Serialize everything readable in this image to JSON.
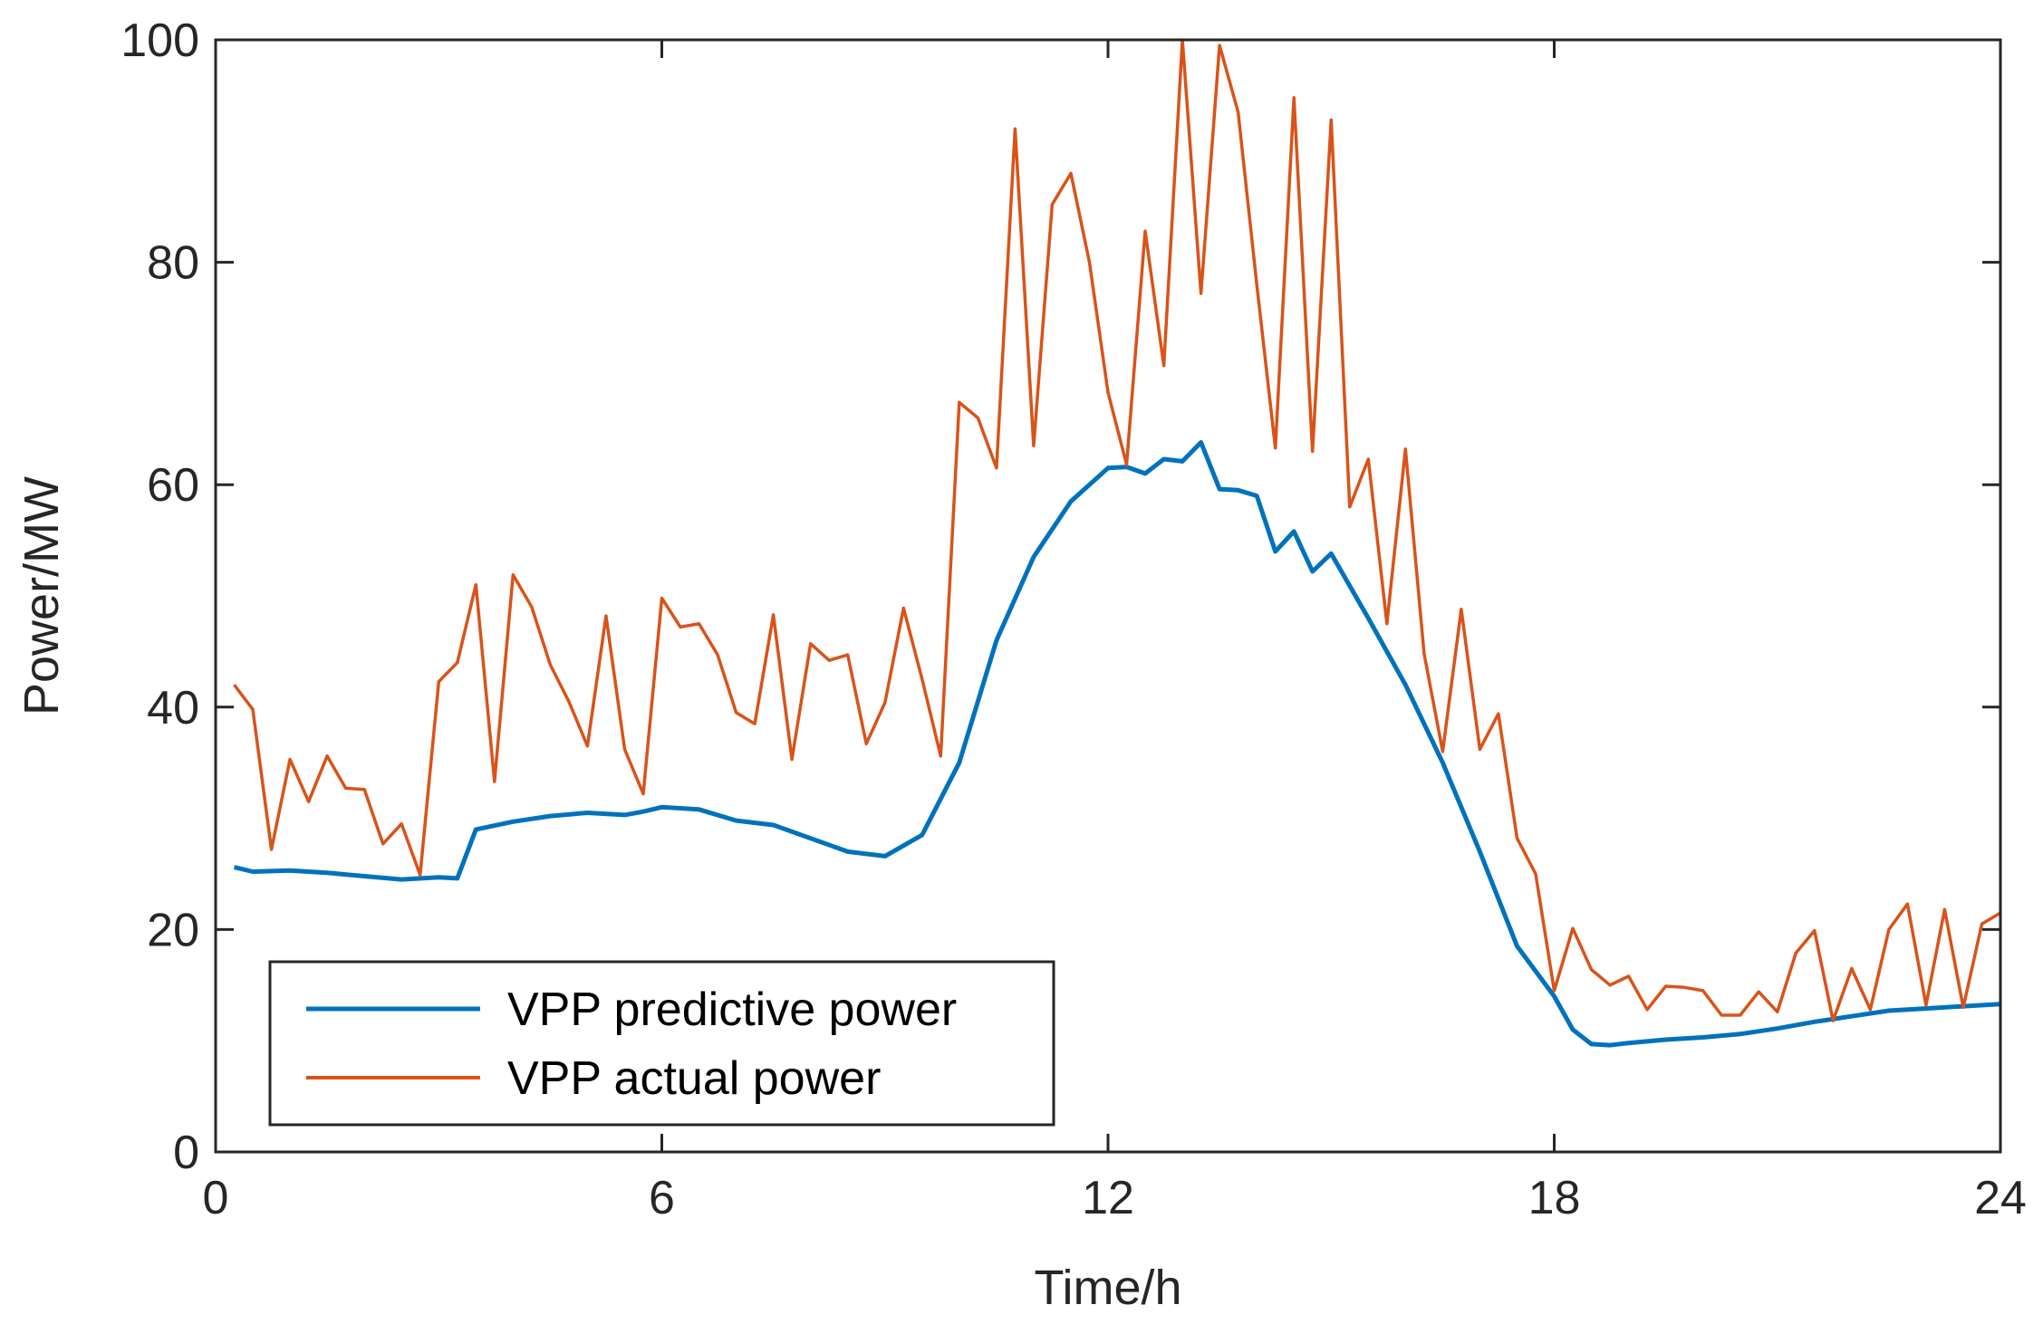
{
  "chart_data": {
    "type": "line",
    "title": "",
    "xlabel": "Time/h",
    "ylabel": "Power/MW",
    "xlim": [
      0,
      24
    ],
    "ylim": [
      0,
      100
    ],
    "xticks": [
      0,
      6,
      12,
      18,
      24
    ],
    "yticks": [
      0,
      20,
      40,
      60,
      80,
      100
    ],
    "grid": false,
    "legend_location": "bottom-left",
    "series": [
      {
        "name": "VPP predictive power",
        "color": "#0072BD",
        "x": [
          0.25,
          0.5,
          1.0,
          1.5,
          2.0,
          2.5,
          3.0,
          3.25,
          3.5,
          4.0,
          4.5,
          5.0,
          5.5,
          5.75,
          6.0,
          6.5,
          7.0,
          7.5,
          8.0,
          8.5,
          9.0,
          9.5,
          10.0,
          10.5,
          11.0,
          11.5,
          12.0,
          12.25,
          12.5,
          12.75,
          13.0,
          13.25,
          13.5,
          13.75,
          14.0,
          14.25,
          14.5,
          14.75,
          15.0,
          15.5,
          16.0,
          16.5,
          17.0,
          17.5,
          18.0,
          18.25,
          18.5,
          18.75,
          19.0,
          19.5,
          20.0,
          20.5,
          21.0,
          21.5,
          22.0,
          22.5,
          23.0,
          23.5,
          24.0
        ],
        "values": [
          25.6,
          25.2,
          25.3,
          25.1,
          24.8,
          24.5,
          24.7,
          24.6,
          29.0,
          29.7,
          30.2,
          30.5,
          30.3,
          30.6,
          31.0,
          30.8,
          29.8,
          29.4,
          28.2,
          27.0,
          26.6,
          28.5,
          35.0,
          46.0,
          53.5,
          58.5,
          61.5,
          61.6,
          61.0,
          62.3,
          62.1,
          63.8,
          59.6,
          59.5,
          59.0,
          54.0,
          55.8,
          52.2,
          53.8,
          48.0,
          42.0,
          35.0,
          27.0,
          18.5,
          14.0,
          11.0,
          9.7,
          9.6,
          9.8,
          10.1,
          10.3,
          10.6,
          11.1,
          11.7,
          12.2,
          12.7,
          12.9,
          13.1,
          13.3
        ]
      },
      {
        "name": "VPP actual power",
        "color": "#D95319",
        "x": [
          0.25,
          0.5,
          0.75,
          1.0,
          1.25,
          1.5,
          1.75,
          2.0,
          2.25,
          2.5,
          2.75,
          3.0,
          3.25,
          3.5,
          3.75,
          4.0,
          4.25,
          4.5,
          4.75,
          5.0,
          5.25,
          5.5,
          5.75,
          6.0,
          6.25,
          6.5,
          6.75,
          7.0,
          7.25,
          7.5,
          7.75,
          8.0,
          8.25,
          8.5,
          8.75,
          9.0,
          9.25,
          9.5,
          9.75,
          10.0,
          10.25,
          10.5,
          10.75,
          11.0,
          11.25,
          11.5,
          11.75,
          12.0,
          12.25,
          12.5,
          12.75,
          13.0,
          13.25,
          13.5,
          13.75,
          14.0,
          14.25,
          14.5,
          14.75,
          15.0,
          15.25,
          15.5,
          15.75,
          16.0,
          16.25,
          16.5,
          16.75,
          17.0,
          17.25,
          17.5,
          17.75,
          18.0,
          18.25,
          18.5,
          18.75,
          19.0,
          19.25,
          19.5,
          19.75,
          20.0,
          20.25,
          20.5,
          20.75,
          21.0,
          21.25,
          21.5,
          21.75,
          22.0,
          22.25,
          22.5,
          22.75,
          23.0,
          23.25,
          23.5,
          23.75,
          24.0
        ],
        "values": [
          42.0,
          39.8,
          27.2,
          35.3,
          31.5,
          35.6,
          32.7,
          32.6,
          27.7,
          29.5,
          24.9,
          42.3,
          44.0,
          51.0,
          33.3,
          51.9,
          49.0,
          43.8,
          40.5,
          36.5,
          48.2,
          36.2,
          32.2,
          49.8,
          47.2,
          47.5,
          44.7,
          39.5,
          38.5,
          48.3,
          35.3,
          45.7,
          44.2,
          44.7,
          36.7,
          40.4,
          48.9,
          42.5,
          35.6,
          67.4,
          66.0,
          61.5,
          92.0,
          63.5,
          85.2,
          88.0,
          80.0,
          68.3,
          61.8,
          82.8,
          70.7,
          100.0,
          77.2,
          99.5,
          93.5,
          78.0,
          63.3,
          94.8,
          63.0,
          92.8,
          58.0,
          62.3,
          47.5,
          63.2,
          44.8,
          36.0,
          48.8,
          36.2,
          39.4,
          28.2,
          25.0,
          14.5,
          20.1,
          16.4,
          15.0,
          15.8,
          12.8,
          14.9,
          14.8,
          14.5,
          12.3,
          12.3,
          14.4,
          12.6,
          17.9,
          19.9,
          11.8,
          16.5,
          12.8,
          20.0,
          22.3,
          13.2,
          21.8,
          13.0,
          20.5,
          21.5
        ]
      }
    ]
  }
}
